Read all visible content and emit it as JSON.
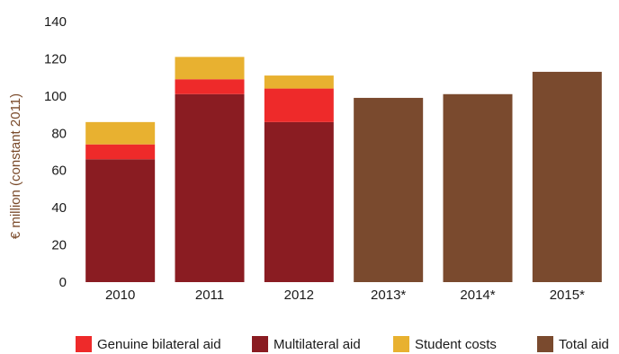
{
  "chart_data": {
    "type": "bar",
    "stacked": true,
    "ylabel": "€ million (constant 2011)",
    "ylim": [
      0,
      140
    ],
    "yticks": [
      0,
      20,
      40,
      60,
      80,
      100,
      120,
      140
    ],
    "grid": false,
    "legend_position": "bottom",
    "categories": [
      "2010",
      "2011",
      "2012",
      "2013*",
      "2014*",
      "2015*"
    ],
    "series": [
      {
        "name": "Multilateral aid",
        "key": "multilateral",
        "color": "#8a1c22",
        "values": [
          66,
          101,
          86,
          null,
          null,
          null
        ]
      },
      {
        "name": "Genuine bilateral aid",
        "key": "bilateral",
        "color": "#ee2a2a",
        "values": [
          8,
          8,
          18,
          null,
          null,
          null
        ]
      },
      {
        "name": "Student costs",
        "key": "student",
        "color": "#e8b130",
        "values": [
          12,
          12,
          7,
          null,
          null,
          null
        ]
      },
      {
        "name": "Total aid",
        "key": "total",
        "color": "#7a4a2e",
        "values": [
          null,
          null,
          null,
          99,
          101,
          113
        ]
      }
    ],
    "legend_order": [
      "bilateral",
      "multilateral",
      "student",
      "total"
    ]
  }
}
